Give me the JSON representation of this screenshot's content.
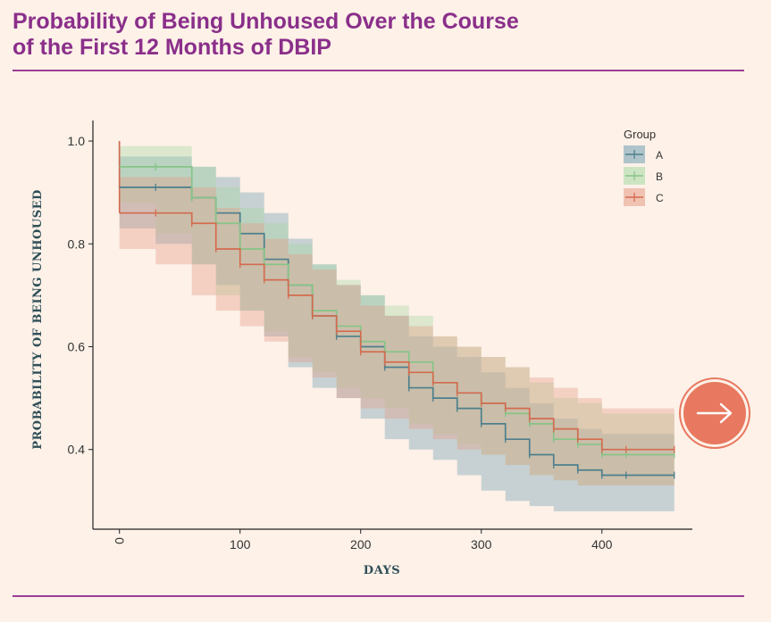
{
  "page": {
    "title_line1": "Probability of Being Unhoused Over the Course",
    "title_line2": "of the First 12 Months of DBIP",
    "next_icon": "arrow-right-icon",
    "accent": "#8a2f8a",
    "button_color": "#e8785f"
  },
  "chart_data": {
    "type": "line",
    "title": "",
    "xlabel": "DAYS",
    "ylabel": "PROBABILITY OF BEING UNHOUSED",
    "xlim": [
      -22,
      475
    ],
    "ylim": [
      0.245,
      1.04
    ],
    "xticks": [
      0,
      100,
      200,
      300,
      400
    ],
    "yticks": [
      0.4,
      0.6,
      0.8,
      1.0
    ],
    "xtick_labels": [
      "0",
      "100",
      "200",
      "300",
      "400"
    ],
    "ytick_labels": [
      "0.4",
      "0.6",
      "0.8",
      "1.0"
    ],
    "grid": false,
    "legend": {
      "title": "Group",
      "position": "top-right"
    },
    "series": [
      {
        "name": "A",
        "color": "#4d7f8c",
        "band_color": "#6f9fb0",
        "x": [
          0,
          30,
          60,
          80,
          100,
          120,
          140,
          160,
          180,
          200,
          220,
          240,
          260,
          280,
          300,
          320,
          340,
          360,
          380,
          400,
          420,
          460
        ],
        "y": [
          0.91,
          0.91,
          0.89,
          0.86,
          0.82,
          0.77,
          0.72,
          0.66,
          0.62,
          0.6,
          0.56,
          0.52,
          0.5,
          0.48,
          0.45,
          0.42,
          0.39,
          0.37,
          0.36,
          0.35,
          0.35,
          0.35
        ],
        "lower": [
          0.83,
          0.83,
          0.8,
          0.76,
          0.72,
          0.67,
          0.62,
          0.56,
          0.52,
          0.5,
          0.46,
          0.42,
          0.4,
          0.38,
          0.35,
          0.32,
          0.3,
          0.29,
          0.28,
          0.28,
          0.28,
          0.28
        ],
        "upper": [
          0.97,
          0.97,
          0.95,
          0.93,
          0.9,
          0.86,
          0.81,
          0.76,
          0.72,
          0.7,
          0.66,
          0.62,
          0.6,
          0.58,
          0.55,
          0.52,
          0.49,
          0.46,
          0.44,
          0.43,
          0.43,
          0.43
        ]
      },
      {
        "name": "B",
        "color": "#86c487",
        "band_color": "#a6d8a4",
        "x": [
          0,
          30,
          60,
          80,
          100,
          120,
          140,
          160,
          180,
          200,
          220,
          240,
          260,
          280,
          300,
          320,
          340,
          360,
          380,
          400,
          420,
          460
        ],
        "y": [
          0.95,
          0.95,
          0.89,
          0.84,
          0.79,
          0.76,
          0.72,
          0.67,
          0.64,
          0.61,
          0.59,
          0.57,
          0.53,
          0.51,
          0.49,
          0.47,
          0.45,
          0.42,
          0.41,
          0.39,
          0.39,
          0.39
        ],
        "lower": [
          0.88,
          0.88,
          0.82,
          0.76,
          0.7,
          0.67,
          0.63,
          0.58,
          0.55,
          0.52,
          0.5,
          0.48,
          0.45,
          0.43,
          0.41,
          0.39,
          0.37,
          0.35,
          0.34,
          0.33,
          0.33,
          0.33
        ],
        "upper": [
          0.99,
          0.99,
          0.95,
          0.91,
          0.87,
          0.84,
          0.8,
          0.76,
          0.73,
          0.7,
          0.68,
          0.66,
          0.62,
          0.6,
          0.58,
          0.56,
          0.53,
          0.5,
          0.49,
          0.47,
          0.47,
          0.47
        ]
      },
      {
        "name": "C",
        "color": "#d36b4f",
        "band_color": "#e59a85",
        "x": [
          0,
          30,
          60,
          80,
          100,
          120,
          140,
          160,
          180,
          200,
          220,
          240,
          260,
          280,
          300,
          320,
          340,
          360,
          380,
          400,
          420,
          460
        ],
        "y": [
          0.86,
          0.86,
          0.84,
          0.79,
          0.76,
          0.73,
          0.7,
          0.66,
          0.63,
          0.59,
          0.57,
          0.55,
          0.53,
          0.51,
          0.49,
          0.48,
          0.46,
          0.44,
          0.42,
          0.4,
          0.4,
          0.4
        ],
        "lower": [
          0.79,
          0.79,
          0.76,
          0.7,
          0.67,
          0.64,
          0.61,
          0.57,
          0.54,
          0.5,
          0.48,
          0.46,
          0.44,
          0.42,
          0.4,
          0.39,
          0.37,
          0.35,
          0.34,
          0.33,
          0.33,
          0.33
        ],
        "upper": [
          0.93,
          0.93,
          0.91,
          0.87,
          0.84,
          0.81,
          0.78,
          0.75,
          0.72,
          0.68,
          0.66,
          0.64,
          0.62,
          0.6,
          0.58,
          0.56,
          0.54,
          0.52,
          0.5,
          0.48,
          0.48,
          0.48
        ]
      }
    ]
  }
}
